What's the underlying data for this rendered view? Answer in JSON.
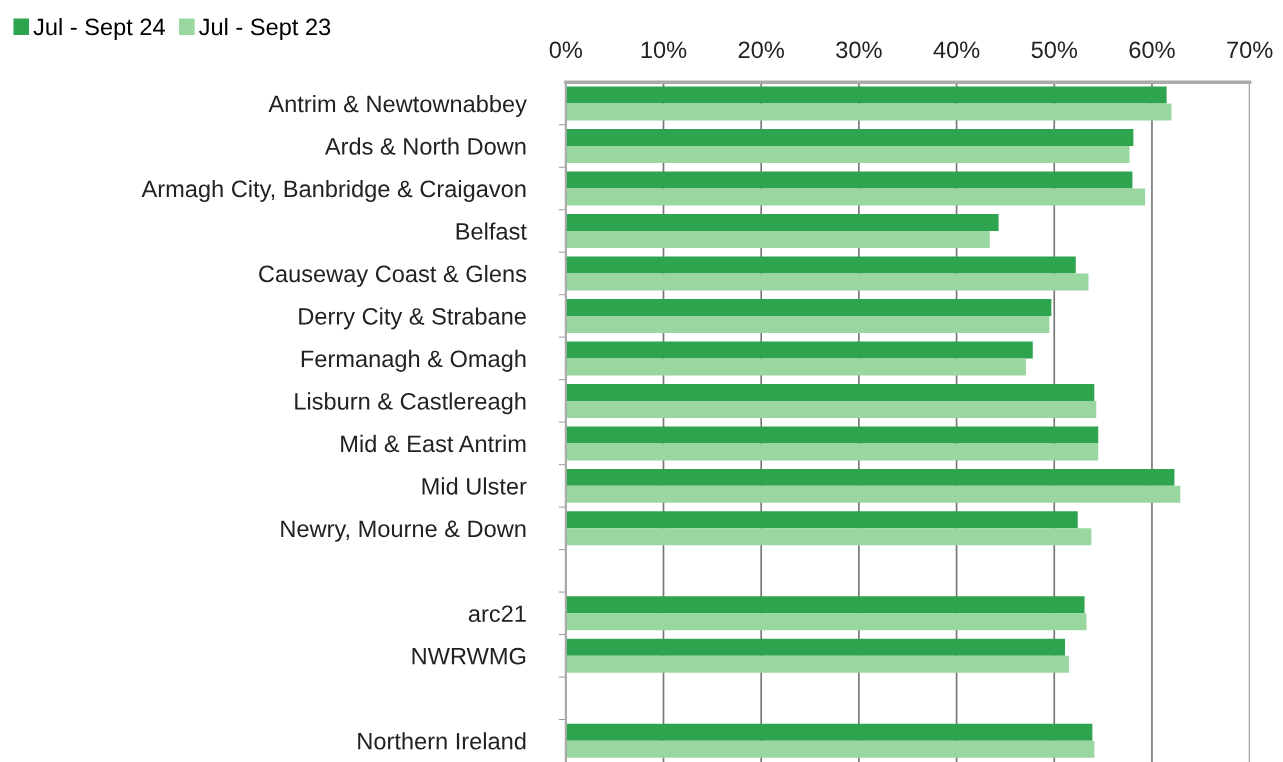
{
  "chart_data": {
    "type": "bar",
    "orientation": "horizontal",
    "categories": [
      "Antrim & Newtownabbey",
      "Ards & North Down",
      "Armagh City, Banbridge & Craigavon",
      "Belfast",
      "Causeway Coast & Glens",
      "Derry City & Strabane",
      "Fermanagh & Omagh",
      "Lisburn & Castlereagh",
      "Mid & East Antrim",
      "Mid Ulster",
      "Newry, Mourne & Down",
      null,
      "arc21",
      "NWRWMG",
      null,
      "Northern Ireland"
    ],
    "series": [
      {
        "name": "Jul - Sept 24",
        "color": "#2ea44f",
        "values": [
          61.5,
          58.1,
          58.0,
          44.3,
          52.2,
          49.7,
          47.8,
          54.1,
          54.5,
          62.3,
          52.4,
          null,
          53.1,
          51.1,
          null,
          53.9
        ]
      },
      {
        "name": "Jul - Sept 23",
        "color": "#99d6a0",
        "values": [
          62.0,
          57.7,
          59.3,
          43.4,
          53.5,
          49.5,
          47.1,
          54.3,
          54.5,
          62.9,
          53.8,
          null,
          53.3,
          51.5,
          null,
          54.1
        ]
      }
    ],
    "xlim": [
      0,
      70
    ],
    "xticks": [
      {
        "value": 0,
        "label": "0%"
      },
      {
        "value": 10,
        "label": "10%"
      },
      {
        "value": 20,
        "label": "20%"
      },
      {
        "value": 30,
        "label": "30%"
      },
      {
        "value": 40,
        "label": "40%"
      },
      {
        "value": 50,
        "label": "50%"
      },
      {
        "value": 60,
        "label": "60%"
      },
      {
        "value": 70,
        "label": "70%"
      }
    ],
    "grid": "x",
    "legend": "top left"
  }
}
